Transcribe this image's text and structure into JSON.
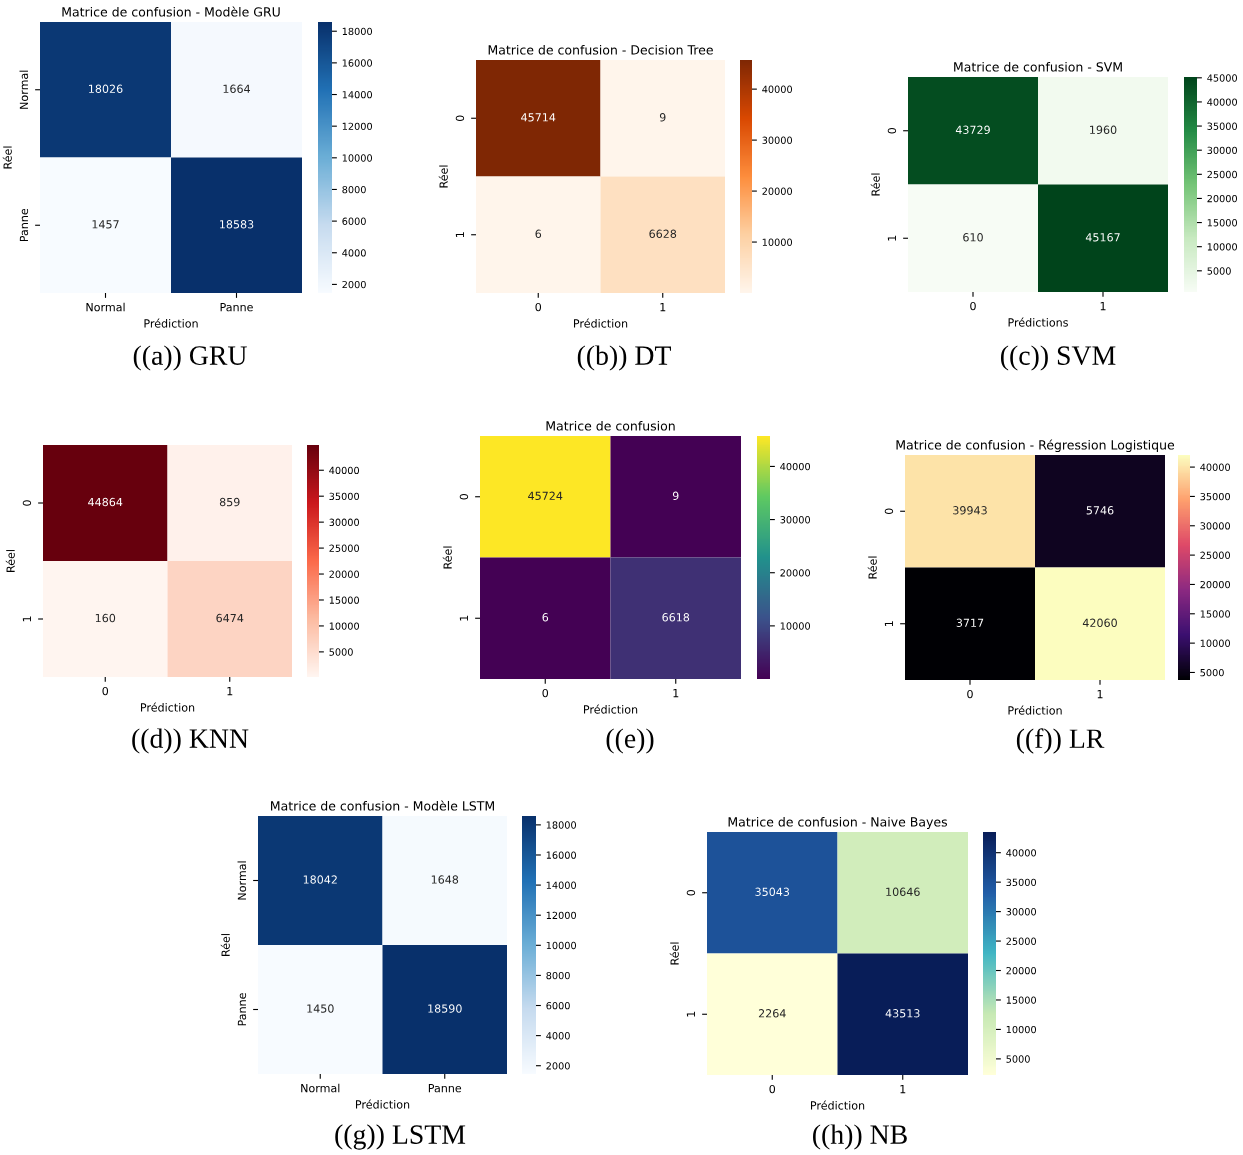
{
  "chart_data": [
    {
      "type": "heatmap",
      "title": "Matrice de confusion - Modèle GRU",
      "xlabel": "Prédiction",
      "ylabel": "Réel",
      "categories": [
        "Normal",
        "Panne"
      ],
      "y_categories": [
        "Normal",
        "Panne"
      ],
      "cells": [
        [
          18026,
          1664
        ],
        [
          1457,
          18583
        ]
      ],
      "clim": [
        1457,
        18583
      ],
      "cticks": [
        2000,
        4000,
        6000,
        8000,
        10000,
        12000,
        14000,
        16000,
        18000
      ],
      "colors": [
        "#f7fbff",
        "#c6dbef",
        "#6baed6",
        "#2171b5",
        "#08306b"
      ],
      "data_labels": true,
      "annotations": [
        "((a)) GRU"
      ]
    },
    {
      "type": "heatmap",
      "title": "Matrice de confusion - Decision Tree",
      "xlabel": "Prédiction",
      "ylabel": "Réel",
      "categories": [
        "0",
        "1"
      ],
      "y_categories": [
        "0",
        "1"
      ],
      "cells": [
        [
          45714,
          9
        ],
        [
          6,
          6628
        ]
      ],
      "clim": [
        6,
        45714
      ],
      "cticks": [
        10000,
        20000,
        30000,
        40000
      ],
      "colors": [
        "#fff5eb",
        "#fdd0a2",
        "#fd8d3c",
        "#d94801",
        "#7f2704"
      ],
      "data_labels": true,
      "annotations": [
        "((b)) DT"
      ]
    },
    {
      "type": "heatmap",
      "title": "Matrice de confusion - SVM",
      "xlabel": "Prédictions",
      "ylabel": "Réel",
      "categories": [
        "0",
        "1"
      ],
      "y_categories": [
        "0",
        "1"
      ],
      "cells": [
        [
          43729,
          1960
        ],
        [
          610,
          45167
        ]
      ],
      "clim": [
        610,
        45167
      ],
      "cticks": [
        5000,
        10000,
        15000,
        20000,
        25000,
        30000,
        35000,
        40000,
        45000
      ],
      "colors": [
        "#f7fcf5",
        "#c7e9c0",
        "#74c476",
        "#238b45",
        "#00441b"
      ],
      "data_labels": true,
      "annotations": [
        "((c)) SVM"
      ]
    },
    {
      "type": "heatmap",
      "xlabel": "Prédiction",
      "ylabel": "Réel",
      "categories": [
        "0",
        "1"
      ],
      "y_categories": [
        "0",
        "1"
      ],
      "cells": [
        [
          44864,
          859
        ],
        [
          160,
          6474
        ]
      ],
      "clim": [
        160,
        44864
      ],
      "cticks": [
        5000,
        10000,
        15000,
        20000,
        25000,
        30000,
        35000,
        40000
      ],
      "colors": [
        "#fff5f0",
        "#fcbba1",
        "#fb6a4a",
        "#cb181d",
        "#67000d"
      ],
      "data_labels": true,
      "annotations": [
        "((d)) KNN"
      ]
    },
    {
      "type": "heatmap",
      "title": "Matrice de confusion",
      "xlabel": "Prédiction",
      "ylabel": "Réel",
      "categories": [
        "0",
        "1"
      ],
      "y_categories": [
        "0",
        "1"
      ],
      "cells": [
        [
          45724,
          9
        ],
        [
          6,
          6618
        ]
      ],
      "clim": [
        6,
        45724
      ],
      "cticks": [
        10000,
        20000,
        30000,
        40000
      ],
      "colors": [
        "#440154",
        "#3b528b",
        "#21918c",
        "#5ec962",
        "#fde725"
      ],
      "data_labels": true,
      "annotations": [
        "((e))"
      ]
    },
    {
      "type": "heatmap",
      "title": "Matrice de confusion - Régression Logistique",
      "xlabel": "Prédiction",
      "ylabel": "Réel",
      "categories": [
        "0",
        "1"
      ],
      "y_categories": [
        "0",
        "1"
      ],
      "cells": [
        [
          39943,
          5746
        ],
        [
          3717,
          42060
        ]
      ],
      "clim": [
        3717,
        42060
      ],
      "cticks": [
        5000,
        10000,
        15000,
        20000,
        25000,
        30000,
        35000,
        40000
      ],
      "colors": [
        "#000004",
        "#3b0f70",
        "#8c2981",
        "#de4968",
        "#fe9f6d",
        "#fcfdbf"
      ],
      "data_labels": true,
      "annotations": [
        "((f)) LR"
      ]
    },
    {
      "type": "heatmap",
      "title": "Matrice de confusion - Modèle LSTM",
      "xlabel": "Prédiction",
      "ylabel": "Réel",
      "categories": [
        "Normal",
        "Panne"
      ],
      "y_categories": [
        "Normal",
        "Panne"
      ],
      "cells": [
        [
          18042,
          1648
        ],
        [
          1450,
          18590
        ]
      ],
      "clim": [
        1450,
        18590
      ],
      "cticks": [
        2000,
        4000,
        6000,
        8000,
        10000,
        12000,
        14000,
        16000,
        18000
      ],
      "colors": [
        "#f7fbff",
        "#c6dbef",
        "#6baed6",
        "#2171b5",
        "#08306b"
      ],
      "data_labels": true,
      "annotations": [
        "((g)) LSTM"
      ]
    },
    {
      "type": "heatmap",
      "title": "Matrice de confusion - Naive Bayes",
      "xlabel": "Prédiction",
      "ylabel": "Réel",
      "categories": [
        "0",
        "1"
      ],
      "y_categories": [
        "0",
        "1"
      ],
      "cells": [
        [
          35043,
          10646
        ],
        [
          2264,
          43513
        ]
      ],
      "clim": [
        2264,
        43513
      ],
      "cticks": [
        5000,
        10000,
        15000,
        20000,
        25000,
        30000,
        35000,
        40000
      ],
      "colors": [
        "#ffffd9",
        "#c7e9b4",
        "#41b6c4",
        "#225ea8",
        "#081d58"
      ],
      "data_labels": true,
      "annotations": [
        "((h)) NB"
      ]
    }
  ]
}
